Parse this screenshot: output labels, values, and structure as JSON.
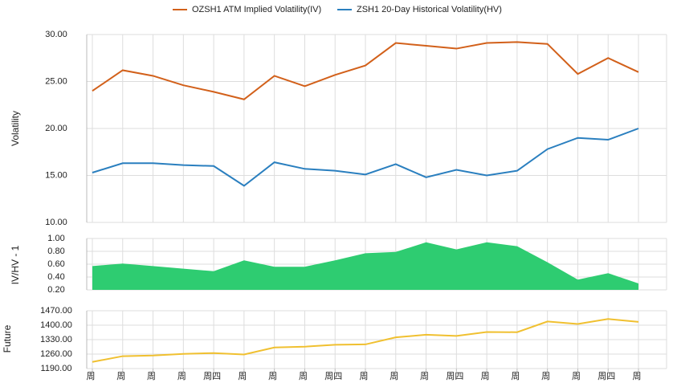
{
  "chart_data": [
    {
      "type": "line",
      "y_label": "Volatility",
      "ylim": [
        10,
        30
      ],
      "yticks": [
        {
          "value": 10,
          "label": "10.00"
        },
        {
          "value": 15,
          "label": "15.00"
        },
        {
          "value": 20,
          "label": "20.00"
        },
        {
          "value": 25,
          "label": "25.00"
        },
        {
          "value": 30,
          "label": "30.00"
        }
      ],
      "series": [
        {
          "name": "OZSH1 ATM Implied Volatility(IV)",
          "color": "#d2601a",
          "values": [
            24.0,
            26.2,
            25.6,
            24.6,
            23.9,
            23.1,
            25.6,
            24.5,
            25.7,
            26.7,
            29.1,
            28.8,
            28.5,
            29.1,
            29.2,
            29.0,
            25.8,
            27.5,
            26.0
          ]
        },
        {
          "name": "ZSH1 20-Day Historical Volatility(HV)",
          "color": "#2a7fbf",
          "values": [
            15.3,
            16.3,
            16.3,
            16.1,
            16.0,
            13.9,
            16.4,
            15.7,
            15.5,
            15.1,
            16.2,
            14.8,
            15.6,
            15.0,
            15.5,
            17.8,
            19.0,
            18.8,
            20.0
          ]
        }
      ]
    },
    {
      "type": "area",
      "y_label": "IV/HV - 1",
      "color": "#2ecc71",
      "ylim": [
        0.2,
        1.0
      ],
      "yticks": [
        {
          "value": 0.2,
          "label": "0.20"
        },
        {
          "value": 0.4,
          "label": "0.40"
        },
        {
          "value": 0.6,
          "label": "0.60"
        },
        {
          "value": 0.8,
          "label": "0.80"
        },
        {
          "value": 1.0,
          "label": "1.00"
        }
      ],
      "values": [
        0.57,
        0.61,
        0.57,
        0.53,
        0.49,
        0.66,
        0.56,
        0.56,
        0.66,
        0.77,
        0.79,
        0.94,
        0.83,
        0.94,
        0.88,
        0.63,
        0.36,
        0.46,
        0.3
      ]
    },
    {
      "type": "line",
      "y_label": "Future",
      "color": "#f0c030",
      "ylim": [
        1190,
        1470
      ],
      "yticks": [
        {
          "value": 1190,
          "label": "1190.00"
        },
        {
          "value": 1260,
          "label": "1260.00"
        },
        {
          "value": 1330,
          "label": "1330.00"
        },
        {
          "value": 1400,
          "label": "1400.00"
        },
        {
          "value": 1470,
          "label": "1470.00"
        }
      ],
      "categories": [
        "周",
        "周",
        "周",
        "周",
        "周四",
        "周",
        "周",
        "周",
        "周四",
        "周",
        "周",
        "周",
        "周四",
        "周",
        "周",
        "周",
        "周",
        "周四",
        "周"
      ],
      "values": [
        1222,
        1250,
        1253,
        1261,
        1265,
        1258,
        1292,
        1296,
        1305,
        1307,
        1341,
        1354,
        1348,
        1367,
        1366,
        1418,
        1406,
        1430,
        1416
      ]
    }
  ]
}
